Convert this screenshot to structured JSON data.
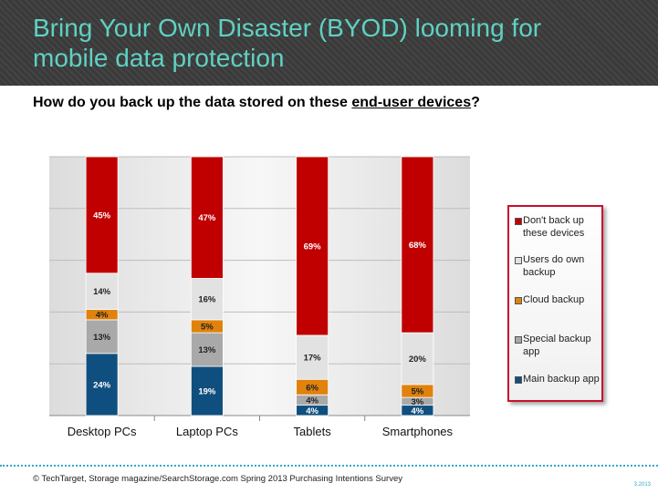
{
  "header": {
    "title": "Bring Your Own Disaster (BYOD) looming for\nmobile data protection"
  },
  "subtitle": {
    "prefix": "How do you back up the data stored on these ",
    "underlined": "end-user devices",
    "suffix": "?"
  },
  "footer": {
    "source": "© TechTarget, Storage magazine/SearchStorage.com Spring 2013 Purchasing Intentions Survey",
    "page_number": "3.2013"
  },
  "colors": {
    "title": "#5fd1c2",
    "header_bg": "#3a3a3a",
    "legend_border": "#c8102e",
    "divider": "#35a8c8"
  },
  "chart_data": {
    "type": "bar",
    "stacked": true,
    "percent_stacked": true,
    "categories": [
      "Desktop PCs",
      "Laptop PCs",
      "Tablets",
      "Smartphones"
    ],
    "series": [
      {
        "name": "Main backup app",
        "color": "#0f4f7f",
        "values": [
          24,
          19,
          4,
          4
        ],
        "labels": [
          "24%",
          "19%",
          "4%",
          "4%"
        ]
      },
      {
        "name": "Special backup app",
        "color": "#a9a9a9",
        "values": [
          13,
          13,
          4,
          3
        ],
        "labels": [
          "13%",
          "13%",
          "4%",
          "3%"
        ]
      },
      {
        "name": "Cloud backup",
        "color": "#e0820c",
        "values": [
          4,
          5,
          6,
          5
        ],
        "labels": [
          "4%",
          "5%",
          "6%",
          "5%"
        ]
      },
      {
        "name": "Users do own backup",
        "color": "#e2e2e2",
        "values": [
          14,
          16,
          17,
          20
        ],
        "labels": [
          "14%",
          "16%",
          "17%",
          "20%"
        ]
      },
      {
        "name": "Don't back up these devices",
        "color": "#c00000",
        "values": [
          45,
          47,
          69,
          68
        ],
        "labels": [
          "45%",
          "47%",
          "69%",
          "68%"
        ]
      }
    ],
    "legend": {
      "position": "right",
      "items": [
        {
          "label": "Don't back up these devices",
          "color": "#c00000"
        },
        {
          "label": "Users do own backup",
          "color": "#e2e2e2"
        },
        {
          "label": "Cloud backup",
          "color": "#e0820c"
        },
        {
          "label": "Special backup app",
          "color": "#a9a9a9"
        },
        {
          "label": "Main backup app",
          "color": "#0f4f7f"
        }
      ]
    },
    "ylim": [
      0,
      100
    ],
    "grid": true
  }
}
